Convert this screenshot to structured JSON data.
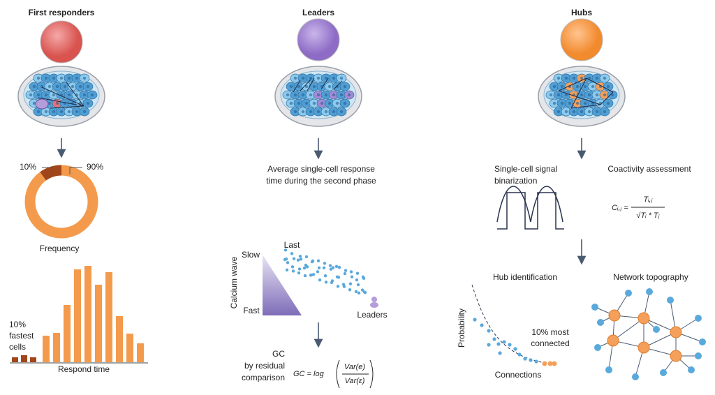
{
  "panels": [
    {
      "title": "First responders",
      "donut": {
        "values": [
          10,
          90
        ],
        "labels": [
          "10%",
          "90%"
        ],
        "colors": [
          "#a0461a",
          "#f39a4c"
        ]
      },
      "donut_caption": "Frequency",
      "histogram": {
        "highlight_counts": [
          7,
          10,
          7
        ],
        "highlight_color": "#a0461a",
        "highlight_label": [
          "10%",
          "fastest",
          "cells"
        ],
        "counts": [
          38,
          42,
          82,
          133,
          138,
          111,
          129,
          66,
          41,
          27
        ],
        "color": "#f39a4c",
        "xlabel": "Respond time"
      }
    },
    {
      "title": "Leaders",
      "caption": [
        "Average single-cell response",
        "time during the second phase"
      ],
      "axis_label": "Calcium wave",
      "scale": [
        "Slow",
        "Fast"
      ],
      "last_label": "Last",
      "leaders_label": "Leaders",
      "method": [
        "GC",
        "by residual",
        "comparison"
      ],
      "formula": {
        "lhs": "GC = log",
        "numerator": "Var(e)",
        "denominator": "Var(ε)"
      }
    },
    {
      "title": "Hubs",
      "binarization": [
        "Single-cell signal",
        "binarization"
      ],
      "coactivity": "Coactivity assessment",
      "formula": {
        "lhs": "Cᵢ,ⱼ =",
        "numerator": "Tᵢ,ⱼ",
        "denominator": "√Tᵢ * Tⱼ"
      },
      "hub_identification": "Hub identification",
      "network": "Network topography",
      "y_label": "Probability",
      "x_label": "Connections",
      "annotation": [
        "10% most",
        "connected"
      ]
    }
  ]
}
